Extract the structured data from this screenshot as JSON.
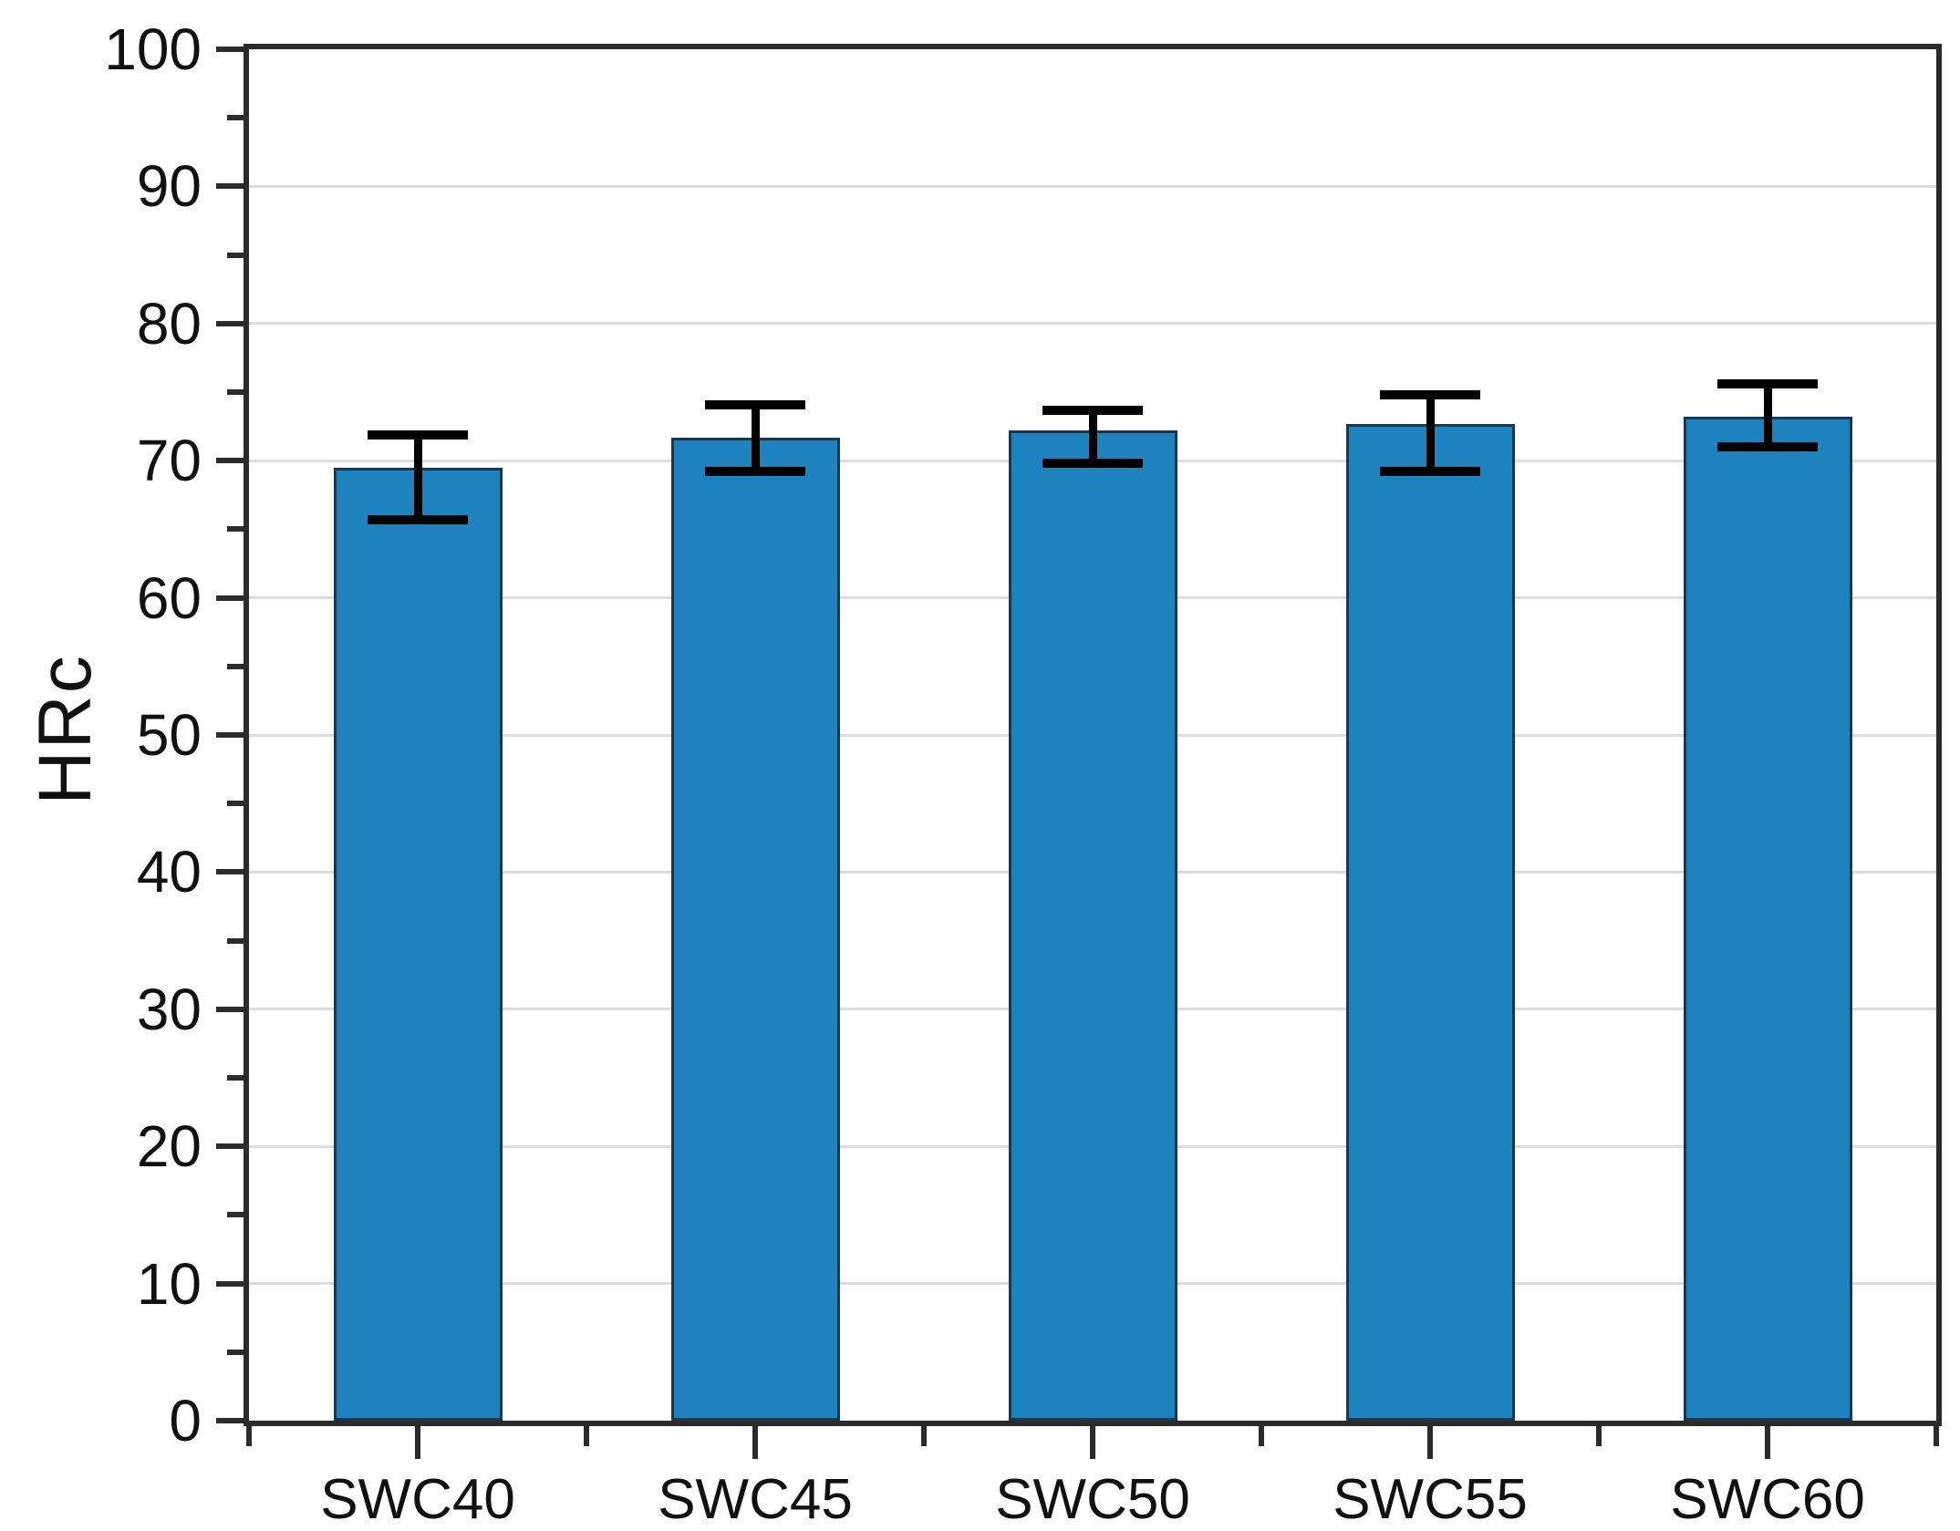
{
  "chart_data": {
    "type": "bar",
    "title": "",
    "xlabel": "",
    "ylabel": "HRc",
    "categories": [
      "SWC40",
      "SWC45",
      "SWC50",
      "SWC55",
      "SWC60"
    ],
    "values": [
      69.5,
      71.7,
      72.2,
      72.7,
      73.2
    ],
    "error_up": [
      2.4,
      2.4,
      1.5,
      2.1,
      2.4
    ],
    "error_down": [
      3.8,
      2.5,
      2.4,
      3.5,
      2.2
    ],
    "ylim": [
      0,
      100
    ],
    "ytick_labels": [
      "0",
      "10",
      "20",
      "30",
      "40",
      "50",
      "60",
      "70",
      "80",
      "90",
      "100"
    ],
    "ytick_step": 10,
    "yminor_step": 5,
    "grid": "horizontal-major",
    "legend": "none",
    "colors": {
      "bar_fill": "#1d82bd",
      "bar_edge": "#17384f",
      "error_bar": "#000000",
      "axis_frame": "#2b2b2b",
      "gridline": "#dcdcdc",
      "text": "#111111"
    }
  }
}
